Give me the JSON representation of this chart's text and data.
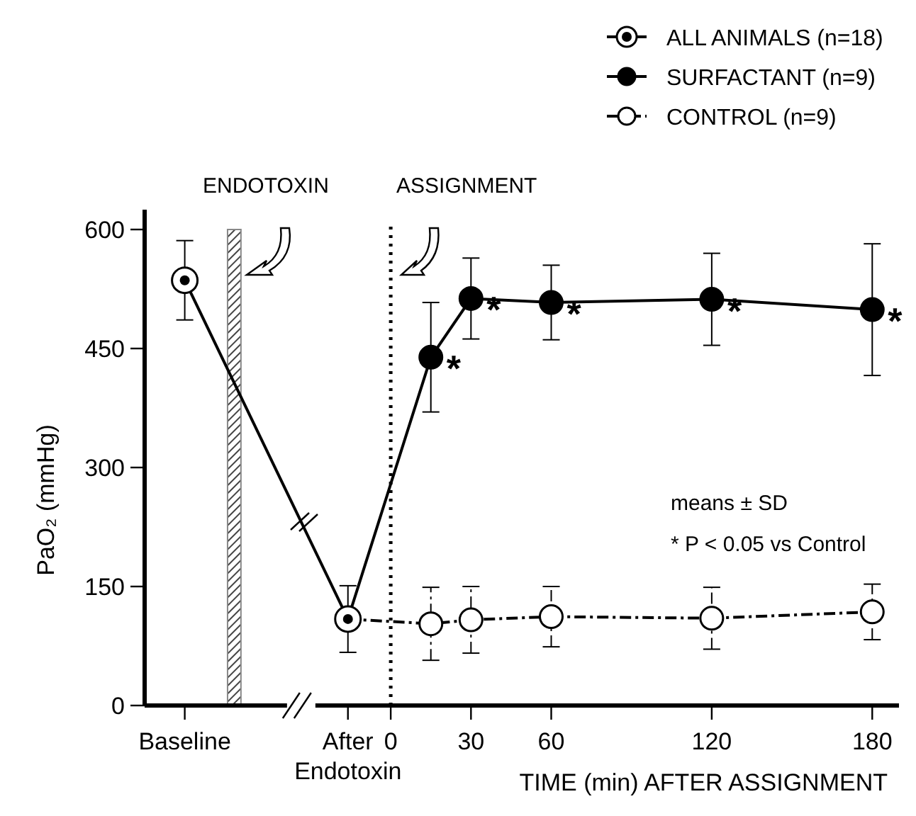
{
  "chart_data": {
    "type": "line",
    "ylabel": "PaO₂ (mmHg)",
    "xlabel": "TIME (min) AFTER ASSIGNMENT",
    "xlim": [
      -92,
      190
    ],
    "xticks": [
      {
        "value": -77,
        "label": "Baseline"
      },
      {
        "value": -16,
        "label": "After\nEndotoxin"
      },
      0,
      30,
      60,
      120,
      180
    ],
    "ylim": [
      0,
      625
    ],
    "yticks": [
      0,
      150,
      300,
      450,
      600
    ],
    "grid": false,
    "legend": "top right",
    "series": [
      {
        "name": "ALL ANIMALS (n=18)",
        "color": "#000000",
        "marker": "circle-dot",
        "line_style": "solid",
        "x": [
          -77,
          -16
        ],
        "values": [
          536,
          109
        ],
        "errors": [
          50,
          42
        ]
      },
      {
        "name": "SURFACTANT (n=9)",
        "color": "#000000",
        "marker": "circle",
        "line_style": "solid",
        "x": [
          -16,
          15,
          30,
          60,
          120,
          180
        ],
        "values": [
          109,
          439,
          513,
          508,
          512,
          499
        ],
        "errors": [
          null,
          69,
          51,
          47,
          58,
          83
        ]
      },
      {
        "name": "CONTROL (n=9)",
        "color": "#000000",
        "marker": "circle-open",
        "line_style": "dashed",
        "x": [
          -16,
          15,
          30,
          60,
          120,
          180
        ],
        "values": [
          109,
          103,
          108,
          112,
          110,
          118
        ],
        "errors": [
          null,
          46,
          42,
          38,
          39,
          35
        ]
      }
    ],
    "bands": [
      {
        "axis": "x",
        "from": -61,
        "to": -56,
        "label": "ENDOTOXIN",
        "color": "#888888"
      }
    ],
    "ref_lines": [
      {
        "axis": "x",
        "value": 0,
        "label": "ASSIGNMENT",
        "line_style": "dotted"
      }
    ],
    "annotations": [
      {
        "text": "*",
        "x": 15,
        "y": 439
      },
      {
        "text": "*",
        "x": 30,
        "y": 513
      },
      {
        "text": "*",
        "x": 60,
        "y": 508
      },
      {
        "text": "*",
        "x": 120,
        "y": 512
      },
      {
        "text": "*",
        "x": 180,
        "y": 499
      },
      "means ± SD",
      "* P < 0.05 vs Control"
    ]
  }
}
